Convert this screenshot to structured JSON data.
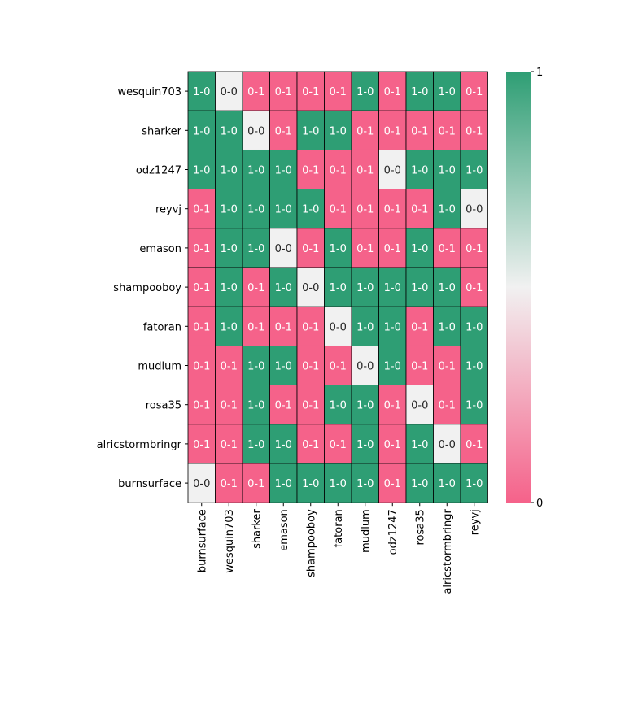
{
  "chart_data": {
    "type": "heatmap",
    "title": "",
    "xlabel": "",
    "ylabel": "",
    "rows": [
      "wesquin703",
      "sharker",
      "odz1247",
      "reyvj",
      "emason",
      "shampooboy",
      "fatoran",
      "mudlum",
      "rosa35",
      "alricstormbringr",
      "burnsurface"
    ],
    "columns": [
      "burnsurface",
      "wesquin703",
      "sharker",
      "emason",
      "shampooboy",
      "fatoran",
      "mudlum",
      "odz1247",
      "rosa35",
      "alricstormbringr",
      "reyvj"
    ],
    "cells": [
      [
        "1-0",
        "0-0",
        "0-1",
        "0-1",
        "0-1",
        "0-1",
        "1-0",
        "0-1",
        "1-0",
        "1-0",
        "0-1"
      ],
      [
        "1-0",
        "1-0",
        "0-0",
        "0-1",
        "1-0",
        "1-0",
        "0-1",
        "0-1",
        "0-1",
        "0-1",
        "0-1"
      ],
      [
        "1-0",
        "1-0",
        "1-0",
        "1-0",
        "0-1",
        "0-1",
        "0-1",
        "0-0",
        "1-0",
        "1-0",
        "1-0"
      ],
      [
        "0-1",
        "1-0",
        "1-0",
        "1-0",
        "1-0",
        "0-1",
        "0-1",
        "0-1",
        "0-1",
        "1-0",
        "0-0"
      ],
      [
        "0-1",
        "1-0",
        "1-0",
        "0-0",
        "0-1",
        "1-0",
        "0-1",
        "0-1",
        "1-0",
        "0-1",
        "0-1"
      ],
      [
        "0-1",
        "1-0",
        "0-1",
        "1-0",
        "0-0",
        "1-0",
        "1-0",
        "1-0",
        "1-0",
        "1-0",
        "0-1"
      ],
      [
        "0-1",
        "1-0",
        "0-1",
        "0-1",
        "0-1",
        "0-0",
        "1-0",
        "1-0",
        "0-1",
        "1-0",
        "1-0"
      ],
      [
        "0-1",
        "0-1",
        "1-0",
        "1-0",
        "0-1",
        "0-1",
        "0-0",
        "1-0",
        "0-1",
        "0-1",
        "1-0"
      ],
      [
        "0-1",
        "0-1",
        "1-0",
        "0-1",
        "0-1",
        "1-0",
        "1-0",
        "0-1",
        "0-0",
        "0-1",
        "1-0"
      ],
      [
        "0-1",
        "0-1",
        "1-0",
        "1-0",
        "0-1",
        "0-1",
        "1-0",
        "0-1",
        "1-0",
        "0-0",
        "0-1"
      ],
      [
        "0-0",
        "0-1",
        "0-1",
        "1-0",
        "1-0",
        "1-0",
        "1-0",
        "0-1",
        "1-0",
        "1-0",
        "1-0"
      ]
    ],
    "colorbar": {
      "min": 0,
      "max": 1,
      "ticks": [
        "0",
        "1"
      ]
    },
    "colors": {
      "high": "#2e9e74",
      "mid": "#f1f1f1",
      "low": "#f5628a"
    },
    "grid": true,
    "legend": "right colorbar"
  }
}
